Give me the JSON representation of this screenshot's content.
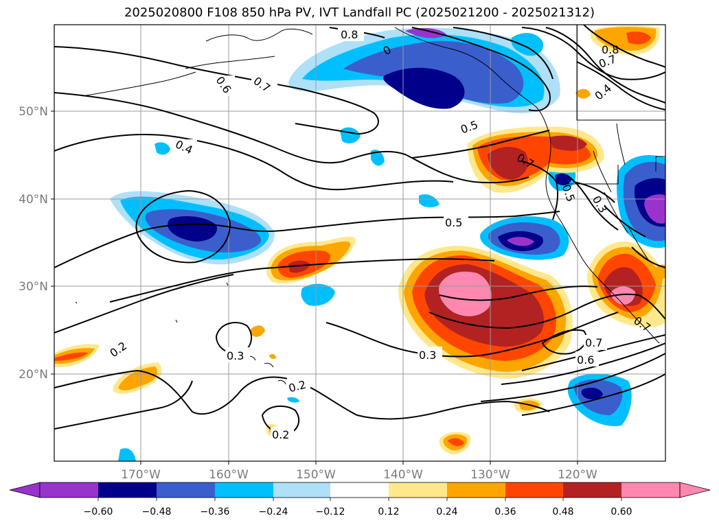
{
  "title": "2025020800 F108 850 hPa PV, IVT Landfall PC (2025021200 - 2025021312)",
  "lon_ticks": [
    "170°W",
    "160°W",
    "150°W",
    "140°W",
    "130°W",
    "120°W"
  ],
  "lat_ticks": [
    "50°N",
    "40°N",
    "30°N",
    "20°N"
  ],
  "contour_labels": [
    {
      "text": "0.8"
    },
    {
      "text": "0"
    },
    {
      "text": "0.7"
    },
    {
      "text": "0.6"
    },
    {
      "text": "0.4"
    },
    {
      "text": "0.5"
    },
    {
      "text": "0.7"
    },
    {
      "text": "0.5"
    },
    {
      "text": "0.3"
    },
    {
      "text": "0.5"
    },
    {
      "text": "0.3"
    },
    {
      "text": "0.2"
    },
    {
      "text": "0.3"
    },
    {
      "text": "0.2"
    },
    {
      "text": "0.2"
    },
    {
      "text": "0.7"
    },
    {
      "text": "0.6"
    },
    {
      "text": "0.8"
    },
    {
      "text": "0.7"
    },
    {
      "text": "0.4"
    },
    {
      "text": "0.7"
    }
  ],
  "colorbar": {
    "ticks": [
      "−0.60",
      "−0.48",
      "−0.36",
      "−0.24",
      "−0.12",
      "0.12",
      "0.24",
      "0.36",
      "0.48",
      "0.60"
    ],
    "colors": [
      "#9933cc",
      "#00008b",
      "#3a5fcd",
      "#00bfff",
      "#aee0f7",
      "#ffffff",
      "#ffe88c",
      "#ffa500",
      "#ff4500",
      "#b22222",
      "#ff88b0"
    ]
  },
  "palette": {
    "neg1": "#aee0f7",
    "neg2": "#00bfff",
    "neg3": "#3a5fcd",
    "neg4": "#00008b",
    "neg5": "#9933cc",
    "pos1": "#ffe88c",
    "pos2": "#ffa500",
    "pos3": "#ff4500",
    "pos4": "#b22222",
    "pos5": "#ff88b0"
  }
}
